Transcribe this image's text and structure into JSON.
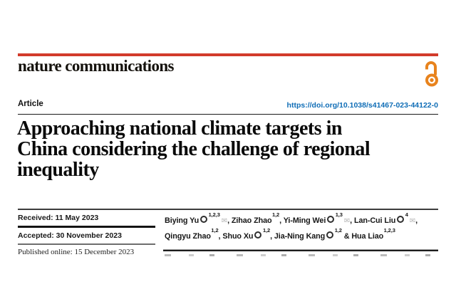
{
  "journal": {
    "name": "nature communications",
    "open_access_icon": "open-padlock"
  },
  "article": {
    "type_label": "Article",
    "doi": "https://doi.org/10.1038/s41467-023-44122-0",
    "title_lines": [
      "Approaching national climate targets in",
      "China considering the challenge of regional",
      "inequality"
    ],
    "dates": {
      "received": "Received: 11 May 2023",
      "accepted": "Accepted: 30 November 2023",
      "published": "Published online: 15 December 2023"
    }
  },
  "authors": {
    "lines": [
      [
        {
          "name": "Biying Yu",
          "affiliations": "1,2,3",
          "orcid": true,
          "corresponding": true,
          "sep": ", "
        },
        {
          "name": "Zihao Zhao",
          "affiliations": "1,2",
          "orcid": false,
          "corresponding": false,
          "sep": ", "
        },
        {
          "name": "Yi-Ming Wei",
          "affiliations": "1,3",
          "orcid": true,
          "corresponding": true,
          "sep": ", "
        },
        {
          "name": "Lan-Cui Liu",
          "affiliations": "4",
          "orcid": true,
          "corresponding": true,
          "sep": ","
        }
      ],
      [
        {
          "name": "Qingyu Zhao",
          "affiliations": "1,2",
          "orcid": false,
          "corresponding": false,
          "sep": ", "
        },
        {
          "name": "Shuo Xu",
          "affiliations": "1,2",
          "orcid": true,
          "corresponding": false,
          "sep": ", "
        },
        {
          "name": "Jia-Ning Kang",
          "affiliations": "1,2",
          "orcid": true,
          "corresponding": false,
          "sep": " & "
        },
        {
          "name": "Hua Liao",
          "affiliations": "1,2,3",
          "orcid": false,
          "corresponding": false,
          "sep": ""
        }
      ]
    ],
    "mail_glyph": "✉"
  },
  "colors": {
    "brand_red": "#d23b2b",
    "open_access_orange": "#e8831d",
    "doi_blue": "#0f6db6"
  }
}
